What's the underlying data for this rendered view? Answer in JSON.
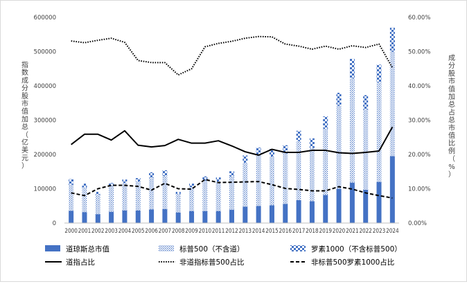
{
  "chart_data": {
    "type": "bar",
    "title": "",
    "ylabel_left": "指数成分股市值加总（亿美元）",
    "ylabel_right": "成分股市值加总占总市值比例（%）",
    "categories": [
      "2000",
      "2001",
      "2002",
      "2003",
      "2004",
      "2005",
      "2006",
      "2007",
      "2008",
      "2009",
      "2010",
      "2011",
      "2012",
      "2013",
      "2014",
      "2015",
      "2016",
      "2017",
      "2018",
      "2019",
      "2020",
      "2021",
      "2022",
      "2023",
      "2024"
    ],
    "left_axis": {
      "ylim": [
        0,
        600000
      ],
      "ticks": [
        "0",
        "100000",
        "200000",
        "300000",
        "400000",
        "500000",
        "600000"
      ]
    },
    "right_axis": {
      "ylim": [
        0,
        60
      ],
      "ticks": [
        "0.00%",
        "10.00%",
        "20.00%",
        "30.00%",
        "40.00%",
        "50.00%",
        "60.00%"
      ]
    },
    "bar_series": [
      {
        "name": "道琼斯总市值",
        "pattern": "solid",
        "values": [
          36000,
          32000,
          26000,
          33000,
          37000,
          37000,
          40000,
          41000,
          31000,
          35000,
          35000,
          35000,
          39000,
          48000,
          50000,
          52000,
          56000,
          67000,
          64000,
          82000,
          100000,
          118000,
          97000,
          120000,
          195000
        ]
      },
      {
        "name": "标普500（不含道）",
        "pattern": "dots",
        "values": [
          76000,
          72000,
          57000,
          75000,
          80000,
          84000,
          92000,
          96000,
          54000,
          70000,
          89000,
          86000,
          97000,
          128000,
          147000,
          142000,
          147000,
          172000,
          155000,
          193000,
          242000,
          304000,
          234000,
          290000,
          305000
        ]
      },
      {
        "name": "罗素1000（不含标普500）",
        "pattern": "checker",
        "values": [
          16000,
          11000,
          8000,
          9000,
          10000,
          10000,
          16000,
          17000,
          6000,
          10000,
          12000,
          12000,
          15000,
          21000,
          23000,
          22000,
          24000,
          30000,
          28000,
          36000,
          38000,
          57000,
          42000,
          52000,
          70000
        ]
      }
    ],
    "line_series": [
      {
        "name": "道指占比",
        "style": "solid",
        "values": [
          22.9,
          25.9,
          25.9,
          24.2,
          26.9,
          22.7,
          22.2,
          22.6,
          24.4,
          23.3,
          23.3,
          24.0,
          22.5,
          20.8,
          19.8,
          21.5,
          20.6,
          20.6,
          21.2,
          21.2,
          20.5,
          20.3,
          20.6,
          21.0,
          28.0
        ]
      },
      {
        "name": "非道指标普500占比",
        "style": "dotted",
        "values": [
          53.1,
          52.6,
          53.3,
          53.9,
          52.7,
          47.4,
          46.8,
          46.8,
          43.2,
          45.0,
          51.4,
          52.4,
          53.0,
          53.9,
          54.4,
          54.3,
          52.2,
          51.6,
          50.7,
          51.6,
          50.7,
          51.7,
          51.2,
          52.2,
          45.3
        ]
      },
      {
        "name": "非标普500罗素1000占比",
        "style": "dashed",
        "values": [
          8.8,
          8.0,
          10.0,
          11.0,
          11.0,
          10.7,
          9.6,
          11.6,
          10.0,
          9.9,
          12.7,
          11.8,
          11.9,
          12.0,
          12.1,
          11.2,
          10.1,
          9.8,
          9.4,
          9.4,
          10.6,
          9.9,
          8.8,
          8.0,
          7.3
        ]
      }
    ],
    "legend": [
      "道琼斯总市值",
      "标普500（不含道）",
      "罗素1000（不含标普500）",
      "道指占比",
      "非道指标普500占比",
      "非标普500罗素1000占比"
    ],
    "grid": false,
    "legend_position": "bottom",
    "colors": {
      "bar_blue": "#4472c4",
      "line": "#000000",
      "axis": "#bfbfbf",
      "text": "#404040"
    }
  }
}
